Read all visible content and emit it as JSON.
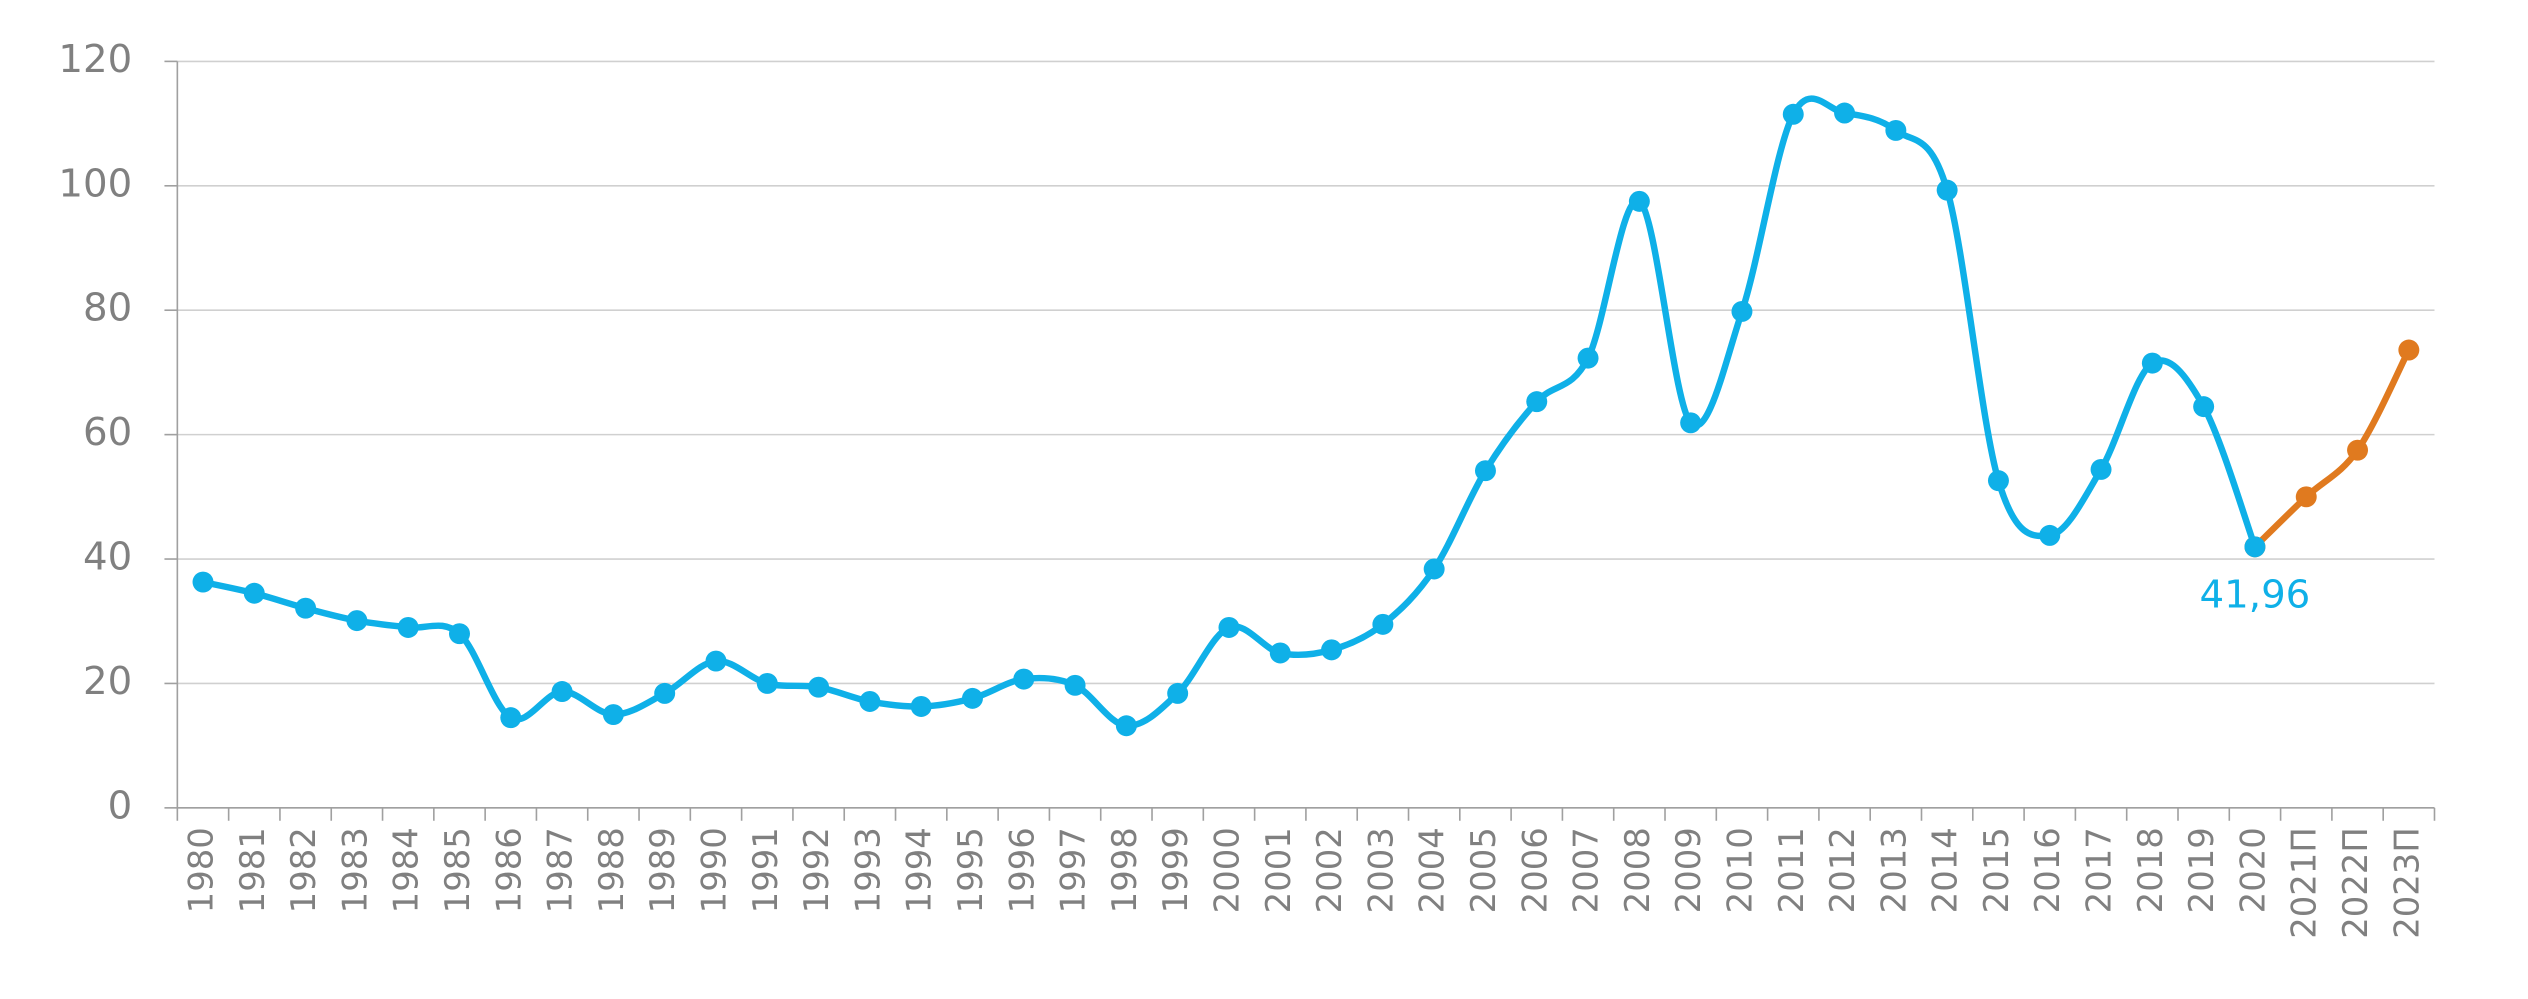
{
  "chart_data": {
    "type": "line",
    "categories": [
      "1980",
      "1981",
      "1982",
      "1983",
      "1984",
      "1985",
      "1986",
      "1987",
      "1988",
      "1989",
      "1990",
      "1991",
      "1992",
      "1993",
      "1994",
      "1995",
      "1996",
      "1997",
      "1998",
      "1999",
      "2000",
      "2001",
      "2002",
      "2003",
      "2004",
      "2005",
      "2006",
      "2007",
      "2008",
      "2009",
      "2010",
      "2011",
      "2012",
      "2013",
      "2014",
      "2015",
      "2016",
      "2017",
      "2018",
      "2019",
      "2020",
      "2021П",
      "2022П",
      "2023П"
    ],
    "series": [
      {
        "color": "#0fb0e8",
        "values": [
          36.3,
          34.5,
          32.1,
          30.1,
          29.0,
          28.0,
          14.5,
          18.7,
          15.0,
          18.4,
          23.6,
          20.0,
          19.4,
          17.1,
          16.3,
          17.6,
          20.7,
          19.7,
          13.2,
          18.4,
          29.0,
          24.9,
          25.4,
          29.5,
          38.4,
          54.2,
          65.3,
          72.3,
          97.5,
          61.9,
          79.8,
          111.5,
          111.7,
          108.9,
          99.3,
          52.6,
          43.8,
          54.4,
          71.5,
          64.5,
          41.96,
          null,
          null,
          null
        ],
        "value_labels": [
          null,
          null,
          null,
          null,
          null,
          null,
          null,
          null,
          null,
          null,
          null,
          null,
          null,
          null,
          null,
          null,
          null,
          null,
          null,
          null,
          null,
          null,
          null,
          null,
          null,
          null,
          null,
          null,
          null,
          null,
          null,
          null,
          null,
          null,
          null,
          null,
          null,
          null,
          null,
          null,
          "41,96",
          null,
          null,
          null
        ]
      },
      {
        "color": "#e07a1f",
        "values": [
          null,
          null,
          null,
          null,
          null,
          null,
          null,
          null,
          null,
          null,
          null,
          null,
          null,
          null,
          null,
          null,
          null,
          null,
          null,
          null,
          null,
          null,
          null,
          null,
          null,
          null,
          null,
          null,
          null,
          null,
          null,
          null,
          null,
          null,
          null,
          null,
          null,
          null,
          null,
          null,
          41.96,
          50.0,
          57.5,
          73.6
        ]
      }
    ],
    "ylim": [
      0,
      120
    ],
    "yticks": [
      0,
      20,
      40,
      60,
      80,
      100,
      120
    ],
    "grid": true
  }
}
